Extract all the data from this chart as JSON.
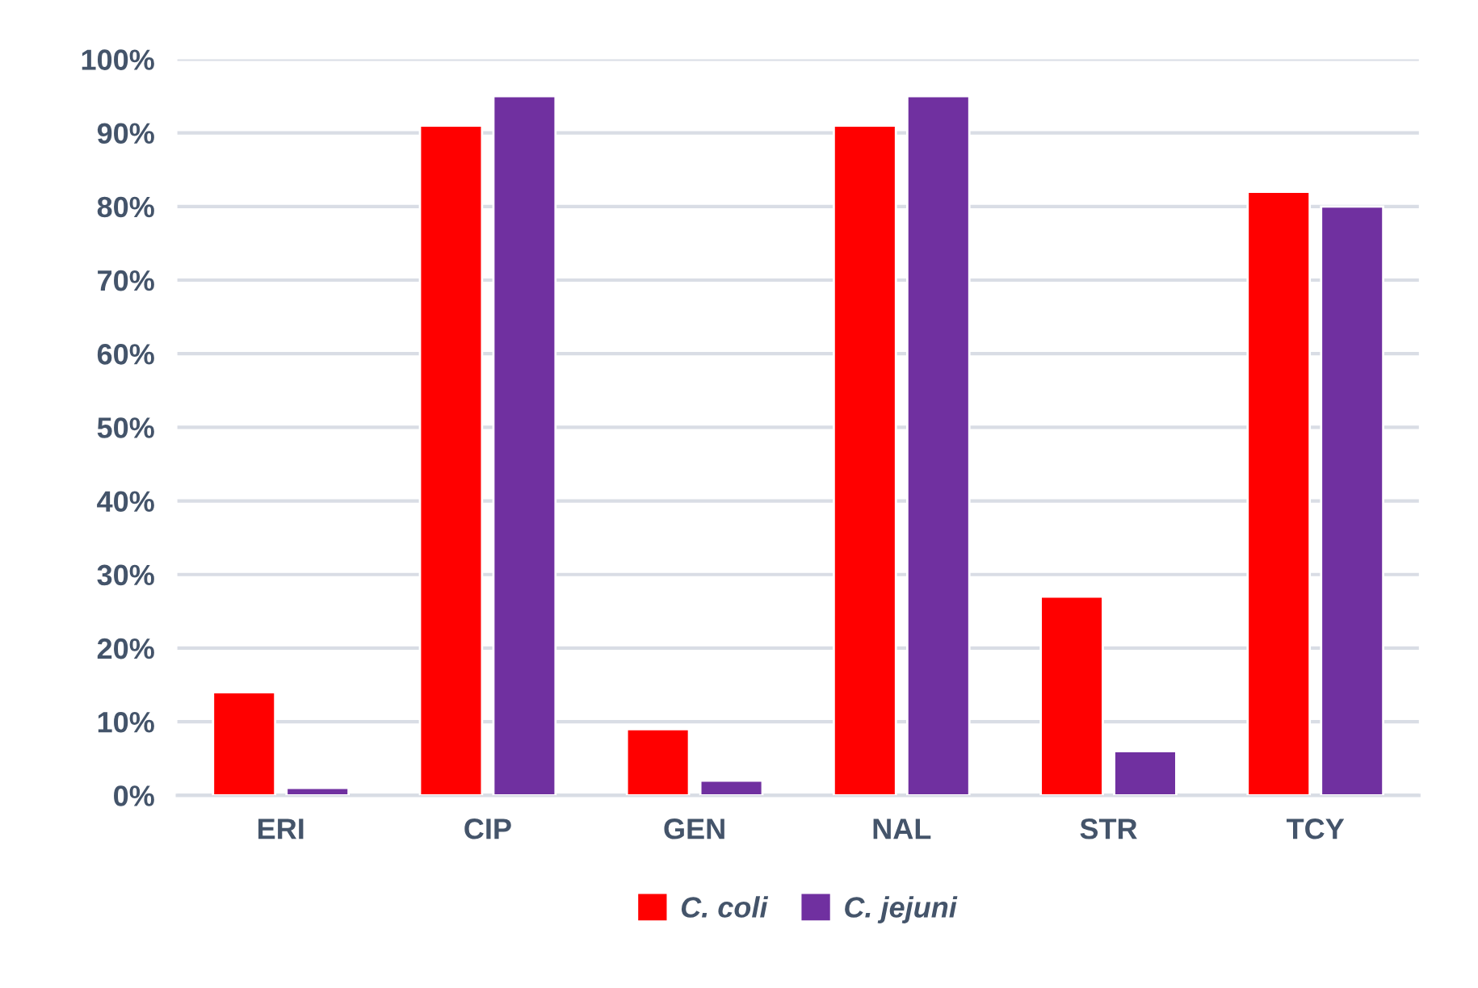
{
  "chart_data": {
    "type": "bar",
    "categories": [
      "ERI",
      "CIP",
      "GEN",
      "NAL",
      "STR",
      "TCY"
    ],
    "series": [
      {
        "name": "C. coli",
        "color": "#ff0000",
        "values": [
          14,
          91,
          9,
          91,
          27,
          82
        ]
      },
      {
        "name": "C. jejuni",
        "color": "#7030a0",
        "values": [
          1,
          95,
          2,
          95,
          6,
          80
        ]
      }
    ],
    "ylim": [
      0,
      100
    ],
    "yticks": [
      {
        "value": 0,
        "label": "0%"
      },
      {
        "value": 10,
        "label": "10%"
      },
      {
        "value": 20,
        "label": "20%"
      },
      {
        "value": 30,
        "label": "30%"
      },
      {
        "value": 40,
        "label": "40%"
      },
      {
        "value": 50,
        "label": "50%"
      },
      {
        "value": 60,
        "label": "60%"
      },
      {
        "value": 70,
        "label": "70%"
      },
      {
        "value": 80,
        "label": "80%"
      },
      {
        "value": 90,
        "label": "90%"
      },
      {
        "value": 100,
        "label": "100%"
      }
    ],
    "grid": "y",
    "legend": "bottom"
  }
}
